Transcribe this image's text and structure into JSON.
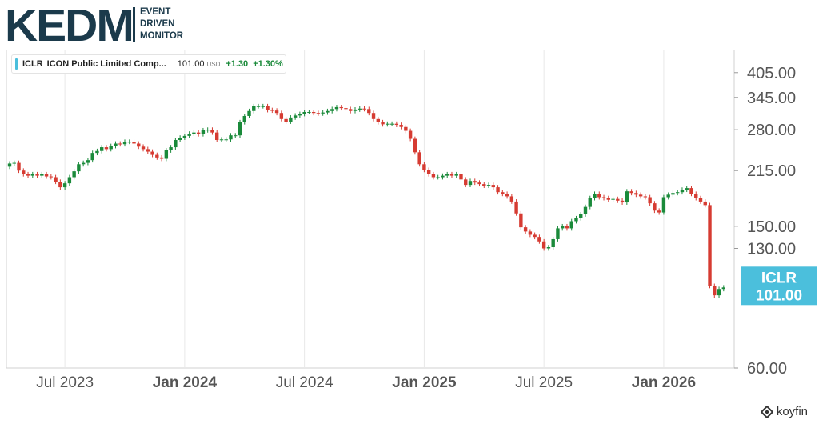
{
  "brand": {
    "name": "KEDM",
    "tagline": [
      "EVENT",
      "DRIVEN",
      "MONITOR"
    ]
  },
  "ticker": {
    "symbol": "ICLR",
    "name": "ICON Public Limited Comp...",
    "price": "101.00",
    "currency": "USD",
    "change": "+1.30",
    "change_pct": "+1.30%"
  },
  "badge": {
    "symbol": "ICLR",
    "price": "101.00",
    "color": "#4bbfdc"
  },
  "watermark": "koyfin",
  "colors": {
    "up": "#1a8a3a",
    "down": "#d63b32",
    "accent": "#4bbfdc",
    "grid": "#e8e8e8"
  },
  "chart_data": {
    "type": "candlestick",
    "scale": "log",
    "ylim": [
      60,
      470
    ],
    "y_ticks": [
      "405.00",
      "345.00",
      "280.00",
      "215.00",
      "150.00",
      "130.00",
      "60.00"
    ],
    "y_tick_values": [
      405,
      345,
      280,
      215,
      150,
      130,
      60
    ],
    "x_ticks": [
      {
        "label": "Jul 2023",
        "bold": false,
        "week": 12
      },
      {
        "label": "Jan 2024",
        "bold": true,
        "week": 38
      },
      {
        "label": "Jul 2024",
        "bold": false,
        "week": 64
      },
      {
        "label": "Jan 2025",
        "bold": true,
        "week": 90
      },
      {
        "label": "Jul 2025",
        "bold": false,
        "week": 116
      },
      {
        "label": "Jan 2026",
        "bold": true,
        "week": 142
      }
    ],
    "closes": [
      225,
      226,
      215,
      210,
      208,
      210,
      208,
      210,
      207,
      206,
      200,
      193,
      198,
      206,
      214,
      224,
      226,
      230,
      241,
      244,
      250,
      247,
      252,
      256,
      255,
      259,
      259,
      256,
      251,
      247,
      243,
      238,
      234,
      232,
      245,
      250,
      262,
      266,
      269,
      273,
      275,
      272,
      279,
      280,
      275,
      262,
      263,
      263,
      270,
      270,
      294,
      306,
      316,
      326,
      326,
      326,
      318,
      317,
      312,
      300,
      295,
      303,
      307,
      310,
      314,
      314,
      312,
      311,
      313,
      316,
      320,
      324,
      322,
      320,
      316,
      319,
      321,
      320,
      312,
      300,
      294,
      290,
      291,
      291,
      289,
      285,
      278,
      264,
      242,
      224,
      216,
      210,
      206,
      206,
      208,
      210,
      208,
      210,
      203,
      196,
      201,
      199,
      197,
      195,
      196,
      193,
      187,
      185,
      182,
      176,
      163,
      149,
      145,
      142,
      140,
      136,
      130,
      131,
      138,
      148,
      150,
      148,
      155,
      158,
      162,
      170,
      180,
      185,
      181,
      180,
      178,
      179,
      177,
      175,
      188,
      186,
      184,
      182,
      181,
      174,
      166,
      164,
      181,
      184,
      186,
      187,
      190,
      192,
      185,
      180,
      176,
      172,
      102,
      96,
      100,
      101
    ]
  }
}
